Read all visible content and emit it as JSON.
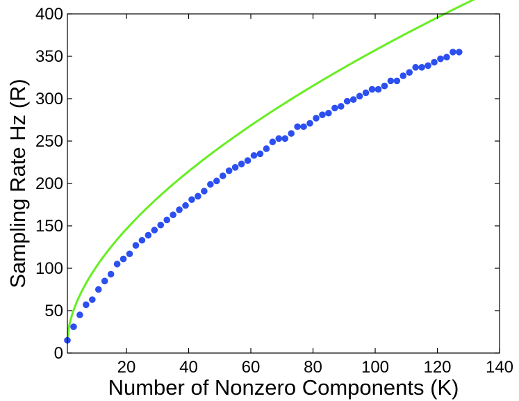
{
  "chart_data": {
    "type": "scatter",
    "xlabel": "Number of Nonzero Components (K)",
    "ylabel": "Sampling Rate Hz (R)",
    "xlim": [
      1,
      140
    ],
    "ylim": [
      0,
      400
    ],
    "xticks": [
      20,
      40,
      60,
      80,
      100,
      120,
      140
    ],
    "yticks": [
      0,
      50,
      100,
      150,
      200,
      250,
      300,
      350,
      400
    ],
    "grid": false,
    "box": true,
    "series": [
      {
        "kind": "scatter",
        "color": "#2c4ff0",
        "points": [
          [
            1,
            15
          ],
          [
            3,
            31
          ],
          [
            5,
            45
          ],
          [
            7,
            57
          ],
          [
            9,
            63
          ],
          [
            11,
            75
          ],
          [
            13,
            85
          ],
          [
            15,
            93
          ],
          [
            17,
            105
          ],
          [
            19,
            111
          ],
          [
            21,
            117
          ],
          [
            23,
            127
          ],
          [
            25,
            133
          ],
          [
            27,
            139
          ],
          [
            29,
            145
          ],
          [
            31,
            151
          ],
          [
            33,
            157
          ],
          [
            35,
            163
          ],
          [
            37,
            169
          ],
          [
            39,
            174
          ],
          [
            41,
            181
          ],
          [
            43,
            185
          ],
          [
            45,
            191
          ],
          [
            47,
            199
          ],
          [
            49,
            203
          ],
          [
            51,
            209
          ],
          [
            53,
            215
          ],
          [
            55,
            219
          ],
          [
            57,
            223
          ],
          [
            59,
            227
          ],
          [
            61,
            233
          ],
          [
            63,
            235
          ],
          [
            65,
            241
          ],
          [
            67,
            249
          ],
          [
            69,
            253
          ],
          [
            71,
            253
          ],
          [
            73,
            259
          ],
          [
            75,
            267
          ],
          [
            77,
            267
          ],
          [
            79,
            271
          ],
          [
            81,
            277
          ],
          [
            83,
            281
          ],
          [
            85,
            283
          ],
          [
            87,
            289
          ],
          [
            89,
            291
          ],
          [
            91,
            297
          ],
          [
            93,
            299
          ],
          [
            95,
            303
          ],
          [
            97,
            307
          ],
          [
            99,
            311
          ],
          [
            101,
            311
          ],
          [
            103,
            315
          ],
          [
            105,
            321
          ],
          [
            107,
            321
          ],
          [
            109,
            327
          ],
          [
            111,
            331
          ],
          [
            113,
            337
          ],
          [
            115,
            337
          ],
          [
            117,
            339
          ],
          [
            119,
            343
          ],
          [
            121,
            347
          ],
          [
            123,
            349
          ],
          [
            125,
            355
          ],
          [
            127,
            355
          ]
        ]
      },
      {
        "kind": "line",
        "color": "#66ee22",
        "fit": {
          "a": 15,
          "b": 23.81,
          "p": 0.58
        },
        "x_range": [
          1,
          140
        ]
      }
    ]
  }
}
